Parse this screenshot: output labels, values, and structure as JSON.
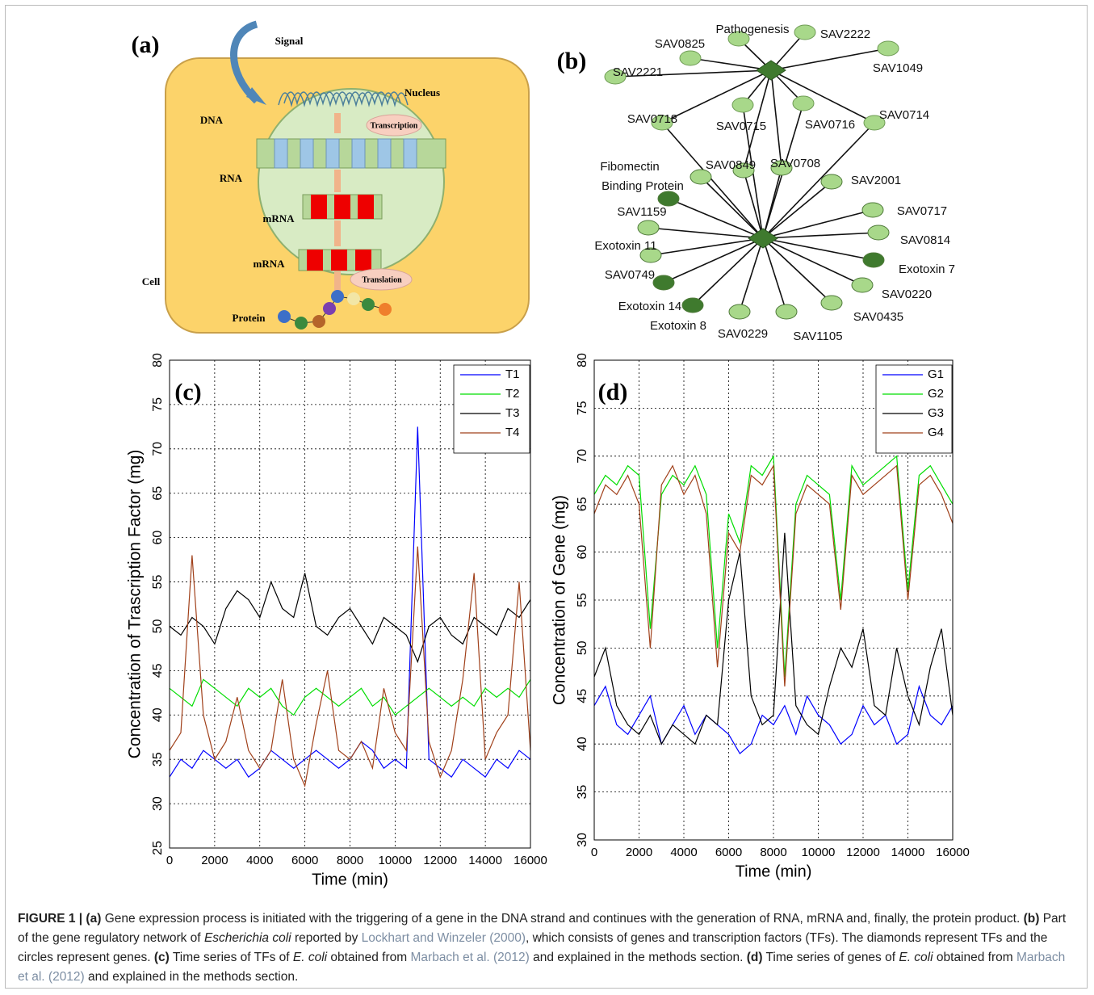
{
  "panel_a": {
    "label": "(a)",
    "labels": [
      "Signal",
      "Nucleus",
      "DNA",
      "Transcription",
      "RNA",
      "mRNA",
      "mRNA",
      "Translation",
      "Cell",
      "Protein"
    ]
  },
  "panel_b": {
    "label": "(b)",
    "labels": [
      "Pathogenesis",
      "SAV2222",
      "SAV0825",
      "SAV1049",
      "SAV2221",
      "SAV0718",
      "SAV0715",
      "SAV0716",
      "SAV0714",
      "Fibomectin",
      "Binding Protein",
      "SAV0849",
      "SAV0708",
      "SAV2001",
      "SAV1159",
      "SAV0717",
      "SAV0814",
      "Exotoxin 11",
      "Exotoxin 7",
      "SAV0749",
      "SAV0220",
      "Exotoxin 14",
      "Exotoxin 8",
      "SAV0435",
      "SAV0229",
      "SAV1105"
    ]
  },
  "chart_data": [
    {
      "type": "line",
      "panel_label": "(c)",
      "xlabel": "Time (min)",
      "ylabel": "Concentration of Trascription Factor (mg)",
      "x": [
        0,
        500,
        1000,
        1500,
        2000,
        2500,
        3000,
        3500,
        4000,
        4500,
        5000,
        5500,
        6000,
        6500,
        7000,
        7500,
        8000,
        8500,
        9000,
        9500,
        10000,
        10500,
        11000,
        11500,
        12000,
        12500,
        13000,
        13500,
        14000,
        14500,
        15000,
        15500,
        16000
      ],
      "xlim": [
        0,
        16000
      ],
      "xticks": [
        0,
        2000,
        4000,
        6000,
        8000,
        10000,
        12000,
        14000,
        16000
      ],
      "ylim": [
        25,
        80
      ],
      "yticks": [
        25,
        30,
        35,
        40,
        45,
        50,
        55,
        60,
        65,
        70,
        75,
        80
      ],
      "grid": true,
      "legend": "top-right",
      "series": [
        {
          "name": "T1",
          "color": "#0000ff",
          "values": [
            33,
            35,
            34,
            36,
            35,
            34,
            35,
            33,
            34,
            36,
            35,
            34,
            35,
            36,
            35,
            34,
            35,
            37,
            36,
            34,
            35,
            34,
            72.5,
            35,
            34,
            33,
            35,
            34,
            33,
            35,
            34,
            36,
            35
          ]
        },
        {
          "name": "T2",
          "color": "#00dd00",
          "values": [
            43,
            42,
            41,
            44,
            43,
            42,
            41,
            43,
            42,
            43,
            41,
            40,
            42,
            43,
            42,
            41,
            42,
            43,
            41,
            42,
            40,
            41,
            42,
            43,
            42,
            41,
            42,
            41,
            43,
            42,
            43,
            42,
            44
          ]
        },
        {
          "name": "T3",
          "color": "#000000",
          "values": [
            50,
            49,
            51,
            50,
            48,
            52,
            54,
            53,
            51,
            55,
            52,
            51,
            56,
            50,
            49,
            51,
            52,
            50,
            48,
            51,
            50,
            49,
            46,
            50,
            51,
            49,
            48,
            51,
            50,
            49,
            52,
            51,
            53
          ]
        },
        {
          "name": "T4",
          "color": "#a0401a",
          "values": [
            36,
            38,
            58,
            40,
            35,
            37,
            42,
            36,
            34,
            36,
            44,
            35,
            32,
            39,
            45,
            36,
            35,
            37,
            34,
            43,
            38,
            36,
            59,
            37,
            33,
            36,
            44,
            56,
            35,
            38,
            40,
            55,
            36
          ]
        }
      ]
    },
    {
      "type": "line",
      "panel_label": "(d)",
      "xlabel": "Time (min)",
      "ylabel": "Concentration of Gene  (mg)",
      "x": [
        0,
        500,
        1000,
        1500,
        2000,
        2500,
        3000,
        3500,
        4000,
        4500,
        5000,
        5500,
        6000,
        6500,
        7000,
        7500,
        8000,
        8500,
        9000,
        9500,
        10000,
        10500,
        11000,
        11500,
        12000,
        12500,
        13000,
        13500,
        14000,
        14500,
        15000,
        15500,
        16000
      ],
      "xlim": [
        0,
        16000
      ],
      "xticks": [
        0,
        2000,
        4000,
        6000,
        8000,
        10000,
        12000,
        14000,
        16000
      ],
      "ylim": [
        30,
        80
      ],
      "yticks": [
        30,
        35,
        40,
        45,
        50,
        55,
        60,
        65,
        70,
        75,
        80
      ],
      "grid": true,
      "legend": "top-right",
      "series": [
        {
          "name": "G1",
          "color": "#0000ff",
          "values": [
            44,
            46,
            42,
            41,
            43,
            45,
            40,
            42,
            44,
            41,
            43,
            42,
            41,
            39,
            40,
            43,
            42,
            44,
            41,
            45,
            43,
            42,
            40,
            41,
            44,
            42,
            43,
            40,
            41,
            46,
            43,
            42,
            44
          ]
        },
        {
          "name": "G2",
          "color": "#00dd00",
          "values": [
            66,
            68,
            67,
            69,
            68,
            52,
            66,
            68,
            67,
            69,
            66,
            50,
            64,
            61,
            69,
            68,
            70,
            47,
            65,
            68,
            67,
            66,
            55,
            69,
            67,
            68,
            69,
            70,
            56,
            68,
            69,
            67,
            65
          ]
        },
        {
          "name": "G3",
          "color": "#000000",
          "values": [
            47,
            50,
            44,
            42,
            41,
            43,
            40,
            42,
            41,
            40,
            43,
            42,
            55,
            60,
            45,
            42,
            43,
            62,
            44,
            42,
            41,
            46,
            50,
            48,
            52,
            44,
            43,
            50,
            45,
            42,
            48,
            52,
            43
          ]
        },
        {
          "name": "G4",
          "color": "#a0401a",
          "values": [
            64,
            67,
            66,
            68,
            65,
            50,
            67,
            69,
            66,
            68,
            64,
            48,
            62,
            60,
            68,
            67,
            69,
            46,
            64,
            67,
            66,
            65,
            54,
            68,
            66,
            67,
            68,
            69,
            55,
            67,
            68,
            66,
            63
          ]
        }
      ]
    }
  ],
  "caption": [
    "FIGURE 1 | (a)",
    "Gene expression process is initiated with the triggering of a gene in the DNA strand and continues with the generation of RNA, mRNA and, finally, the protein product.",
    "(b)",
    "Part of the gene regulatory network of",
    "Escherichia coli",
    "reported by",
    "Lockhart and Winzeler (2000)",
    ", which consists of genes and transcription factors (TFs). The diamonds represent TFs and the circles represent genes.",
    "(c)",
    "Time series of TFs of",
    "E. coli",
    "obtained from",
    "Marbach et al. (2012)",
    "and explained in the methods section.",
    "(d)",
    "Time series of genes of",
    "E. coli",
    "obtained from",
    "Marbach et al. (2012)",
    "and explained in the methods section."
  ]
}
